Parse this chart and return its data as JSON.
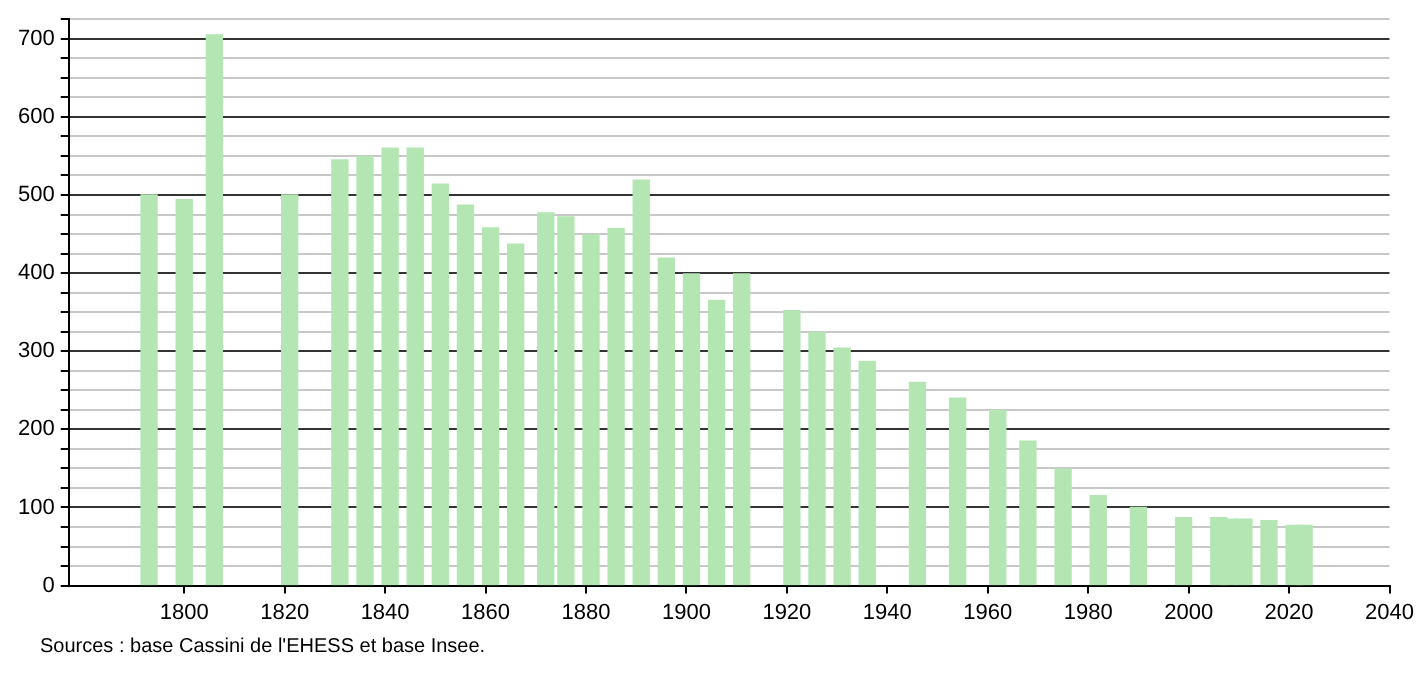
{
  "chart_data": {
    "type": "bar",
    "x": [
      1793,
      1800,
      1806,
      1821,
      1831,
      1836,
      1841,
      1846,
      1851,
      1856,
      1861,
      1866,
      1872,
      1876,
      1881,
      1886,
      1891,
      1896,
      1901,
      1906,
      1911,
      1921,
      1926,
      1931,
      1936,
      1946,
      1954,
      1962,
      1968,
      1975,
      1982,
      1990,
      1999,
      2006,
      2008,
      2011,
      2016,
      2021,
      2023
    ],
    "values": [
      500,
      494,
      705,
      500,
      545,
      549,
      560,
      560,
      514,
      487,
      458,
      437,
      477,
      472,
      449,
      457,
      519,
      419,
      399,
      365,
      399,
      352,
      324,
      304,
      287,
      260,
      240,
      224,
      185,
      149,
      115,
      100,
      87,
      87,
      85,
      85,
      83,
      77,
      77
    ],
    "color": "#b3e6b3",
    "xlim": [
      1777,
      2040
    ],
    "xticks": [
      1800,
      1820,
      1840,
      1860,
      1880,
      1900,
      1920,
      1940,
      1960,
      1980,
      2000,
      2020,
      2040
    ],
    "ylim": [
      0,
      725
    ],
    "yticks": [
      0,
      {
        "value": 25,
        "label": null
      },
      {
        "value": 50,
        "label": null
      },
      {
        "value": 75,
        "label": null
      },
      100,
      {
        "value": 125,
        "label": null
      },
      {
        "value": 150,
        "label": null
      },
      {
        "value": 175,
        "label": null
      },
      200,
      {
        "value": 225,
        "label": null
      },
      {
        "value": 250,
        "label": null
      },
      {
        "value": 275,
        "label": null
      },
      300,
      {
        "value": 325,
        "label": null
      },
      {
        "value": 350,
        "label": null
      },
      {
        "value": 375,
        "label": null
      },
      400,
      {
        "value": 425,
        "label": null
      },
      {
        "value": 450,
        "label": null
      },
      {
        "value": 475,
        "label": null
      },
      500,
      {
        "value": 525,
        "label": null
      },
      {
        "value": 550,
        "label": null
      },
      {
        "value": 575,
        "label": null
      },
      600,
      {
        "value": 625,
        "label": null
      },
      {
        "value": 650,
        "label": null
      },
      {
        "value": 675,
        "label": null
      },
      700,
      {
        "value": 725,
        "label": null
      }
    ],
    "grid": "y",
    "legend": false,
    "annotations": [
      "Sources : base Cassini de l'EHESS et base Insee."
    ]
  }
}
